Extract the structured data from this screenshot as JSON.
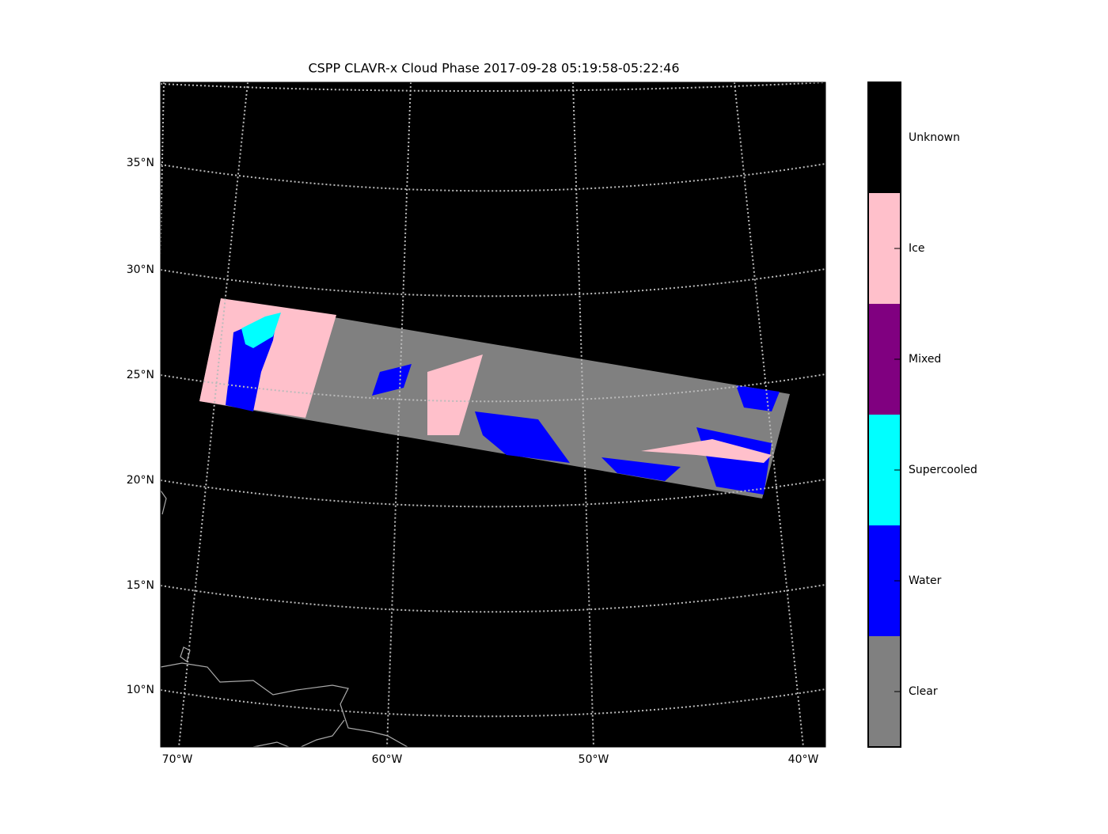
{
  "title": "CSPP CLAVR-x Cloud Phase 2017-09-28 05:19:58-05:22:46",
  "map": {
    "lat_labels": [
      "35°N",
      "30°N",
      "25°N",
      "20°N",
      "15°N",
      "10°N"
    ],
    "lon_labels": [
      "70°W",
      "60°W",
      "50°W",
      "40°W"
    ]
  },
  "colorbar": {
    "classes": [
      {
        "label": "Unknown",
        "color": "#000000"
      },
      {
        "label": "Ice",
        "color": "#ffc0cb"
      },
      {
        "label": "Mixed",
        "color": "#800080"
      },
      {
        "label": "Supercooled",
        "color": "#00ffff"
      },
      {
        "label": "Water",
        "color": "#0000ff"
      },
      {
        "label": "Clear",
        "color": "#808080"
      }
    ]
  }
}
